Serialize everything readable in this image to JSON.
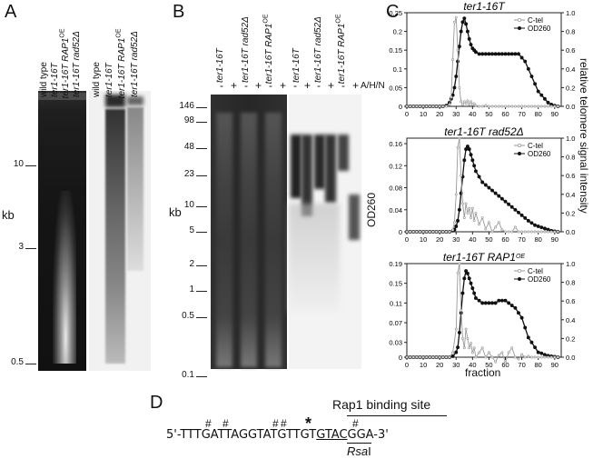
{
  "panels": {
    "a": "A",
    "b": "B",
    "c": "C",
    "d": "D"
  },
  "panelA": {
    "lanes": [
      "wild type",
      "ter1-16T",
      "ter1-16T RAP1",
      "ter1-16T rad52Δ",
      "wild type",
      "ter1-16T",
      "ter1-16T RAP1",
      "ter1-16T rad52Δ"
    ],
    "superscript": "OE",
    "yunit": "kb",
    "ticks": [
      "10",
      "3",
      "0.5"
    ]
  },
  "panelB": {
    "lanes": [
      "ter1-16T",
      "ter1-16T rad52Δ",
      "ter1-16T RAP1",
      "ter1-16T",
      "ter1-16T rad52Δ",
      "ter1-16T RAP1"
    ],
    "superscript": "OE",
    "pm": [
      "-",
      "+"
    ],
    "treatment": "A/H/N",
    "yunit": "kb",
    "ticks": [
      "146",
      "98",
      "48",
      "23",
      "10",
      "5",
      "2",
      "1",
      "0.5",
      "0.1"
    ]
  },
  "panelC": {
    "ylabel_left": "OD260",
    "ylabel_right": "relative telomere signal intensity",
    "xlabel": "fraction",
    "legend": [
      "C-tel",
      "OD260"
    ]
  },
  "chart_data": [
    {
      "type": "line",
      "title": "ter1-16T",
      "x": [
        0,
        2,
        4,
        6,
        8,
        10,
        12,
        14,
        16,
        18,
        20,
        22,
        24,
        26,
        27,
        28,
        29,
        30,
        31,
        32,
        33,
        34,
        35,
        36,
        37,
        38,
        39,
        40,
        41,
        42,
        44,
        46,
        48,
        50,
        52,
        54,
        56,
        58,
        60,
        62,
        64,
        66,
        68,
        70,
        72,
        74,
        76,
        78,
        80,
        82,
        84,
        86,
        88,
        90,
        92
      ],
      "series": [
        {
          "name": "OD260",
          "axis": "left",
          "values": [
            0,
            0,
            0,
            0,
            0,
            0,
            0,
            0,
            0,
            0,
            0,
            0,
            0.002,
            0.01,
            0.02,
            0.03,
            0.05,
            0.08,
            0.12,
            0.16,
            0.2,
            0.225,
            0.235,
            0.22,
            0.2,
            0.18,
            0.165,
            0.155,
            0.15,
            0.145,
            0.14,
            0.14,
            0.14,
            0.14,
            0.14,
            0.14,
            0.14,
            0.14,
            0.14,
            0.14,
            0.14,
            0.14,
            0.14,
            0.13,
            0.12,
            0.1,
            0.08,
            0.06,
            0.04,
            0.03,
            0.02,
            0.01,
            0.005,
            0.002,
            0
          ]
        },
        {
          "name": "C-tel",
          "axis": "right",
          "values": [
            0,
            0,
            0,
            0,
            0,
            0,
            0,
            0,
            0,
            0,
            0,
            0,
            0,
            0.02,
            0.1,
            0.5,
            0.9,
            0.95,
            0.6,
            0.2,
            0.05,
            0.02,
            0.05,
            0.03,
            0.06,
            0.02,
            0.05,
            0.02,
            0.03,
            0.01,
            0,
            0,
            0.01,
            0,
            0,
            0,
            0,
            0,
            0,
            0,
            0,
            0,
            0,
            0,
            0,
            0,
            0,
            0,
            0,
            0,
            0,
            0,
            0,
            0,
            0
          ]
        }
      ],
      "yleft_ticks": [
        0,
        0.05,
        0.1,
        0.15,
        0.2,
        0.25
      ],
      "yright_ticks": [
        0,
        0.2,
        0.4,
        0.6,
        0.8,
        1.0
      ],
      "x_ticks": [
        0,
        10,
        20,
        30,
        40,
        50,
        60,
        70,
        80,
        90
      ],
      "ylim_left": [
        0,
        0.25
      ],
      "ylim_right": [
        0,
        1.0
      ],
      "xlim": [
        0,
        94
      ]
    },
    {
      "type": "line",
      "title": "ter1-16T rad52Δ",
      "x": [
        0,
        2,
        4,
        6,
        8,
        10,
        12,
        14,
        16,
        18,
        20,
        22,
        24,
        26,
        28,
        29,
        30,
        31,
        32,
        33,
        34,
        35,
        36,
        37,
        38,
        39,
        40,
        41,
        42,
        44,
        46,
        48,
        50,
        52,
        54,
        56,
        58,
        60,
        62,
        64,
        66,
        68,
        70,
        72,
        74,
        76,
        78,
        80,
        82,
        84,
        86,
        88,
        90,
        92
      ],
      "series": [
        {
          "name": "OD260",
          "axis": "left",
          "values": [
            0,
            0,
            0,
            0,
            0,
            0,
            0,
            0,
            0,
            0,
            0,
            0,
            0,
            0,
            0.002,
            0.004,
            0.01,
            0.02,
            0.04,
            0.07,
            0.1,
            0.13,
            0.15,
            0.155,
            0.15,
            0.14,
            0.13,
            0.12,
            0.11,
            0.1,
            0.09,
            0.085,
            0.08,
            0.075,
            0.07,
            0.065,
            0.06,
            0.055,
            0.05,
            0.045,
            0.04,
            0.035,
            0.03,
            0.025,
            0.02,
            0.016,
            0.012,
            0.01,
            0.008,
            0.006,
            0.004,
            0.002,
            0.001,
            0
          ]
        },
        {
          "name": "C-tel",
          "axis": "right",
          "values": [
            0,
            0,
            0,
            0,
            0,
            0,
            0,
            0,
            0,
            0,
            0,
            0,
            0,
            0,
            0.02,
            0.1,
            0.4,
            0.9,
            1.0,
            0.6,
            0.3,
            0.15,
            0.3,
            0.2,
            0.25,
            0.15,
            0.25,
            0.12,
            0.2,
            0.08,
            0.15,
            0.03,
            0.1,
            0,
            0.05,
            0.1,
            0.02,
            0,
            0,
            0,
            0.05,
            0,
            0,
            0,
            0,
            0,
            0,
            0,
            0,
            0,
            0,
            0,
            0,
            0
          ]
        }
      ],
      "yleft_ticks": [
        0,
        0.04,
        0.08,
        0.12,
        0.16
      ],
      "yright_ticks": [
        0,
        0.2,
        0.4,
        0.6,
        0.8,
        1.0
      ],
      "x_ticks": [
        0,
        10,
        20,
        30,
        40,
        50,
        60,
        70,
        80,
        90
      ],
      "ylim_left": [
        0,
        0.17
      ],
      "ylim_right": [
        0,
        1.0
      ],
      "xlim": [
        0,
        94
      ]
    },
    {
      "type": "line",
      "title": "ter1-16T RAP1",
      "title_superscript": "OE",
      "x": [
        0,
        2,
        4,
        6,
        8,
        10,
        12,
        14,
        16,
        18,
        20,
        22,
        24,
        26,
        28,
        30,
        31,
        32,
        33,
        34,
        35,
        36,
        37,
        38,
        39,
        40,
        41,
        42,
        44,
        46,
        48,
        50,
        52,
        54,
        56,
        58,
        60,
        62,
        64,
        66,
        68,
        70,
        72,
        74,
        76,
        78,
        80,
        82,
        84,
        86,
        88,
        90,
        92
      ],
      "series": [
        {
          "name": "OD260",
          "axis": "left",
          "values": [
            0,
            0,
            0,
            0,
            0,
            0,
            0,
            0,
            0,
            0,
            0,
            0,
            0,
            0,
            0.002,
            0.01,
            0.02,
            0.05,
            0.09,
            0.13,
            0.16,
            0.175,
            0.17,
            0.16,
            0.15,
            0.14,
            0.13,
            0.12,
            0.115,
            0.11,
            0.11,
            0.11,
            0.11,
            0.11,
            0.115,
            0.115,
            0.115,
            0.11,
            0.105,
            0.1,
            0.09,
            0.08,
            0.06,
            0.04,
            0.03,
            0.02,
            0.01,
            0.008,
            0.005,
            0.003,
            0.002,
            0.001,
            0
          ]
        },
        {
          "name": "C-tel",
          "axis": "right",
          "values": [
            0,
            0,
            0,
            0,
            0,
            0,
            0,
            0,
            0,
            0,
            0,
            0,
            0,
            0,
            0.05,
            0.3,
            0.9,
            1.0,
            0.5,
            0.2,
            0.1,
            0.3,
            0.2,
            0.1,
            0.15,
            0.05,
            0.1,
            0.0,
            0.05,
            0.1,
            0.0,
            0.05,
            0.0,
            -0.05,
            0.02,
            0.05,
            -0.1,
            0.05,
            0.1,
            0.0,
            -0.02,
            0.03,
            0,
            0.01,
            0,
            0,
            0,
            0,
            0,
            0,
            0,
            0,
            0
          ]
        }
      ],
      "yleft_ticks": [
        0,
        0.03,
        0.07,
        0.11,
        0.15,
        0.19
      ],
      "yright_ticks": [
        0,
        0.2,
        0.4,
        0.6,
        0.8,
        1.0
      ],
      "x_ticks": [
        0,
        10,
        20,
        30,
        40,
        50,
        60,
        70,
        80,
        90
      ],
      "ylim_left": [
        0,
        0.19
      ],
      "ylim_right": [
        0,
        1.0
      ],
      "xlim": [
        0,
        94
      ]
    }
  ],
  "panelD": {
    "header": "Rap1 binding site",
    "seq_left": "5'-TTTGATTAGGTATGTTGT",
    "seq_site": "GTAC",
    "seq_right": "GGA-3'",
    "rsa": "Rsa",
    "rsa_tail": "I",
    "hash": "#",
    "star": "*"
  }
}
